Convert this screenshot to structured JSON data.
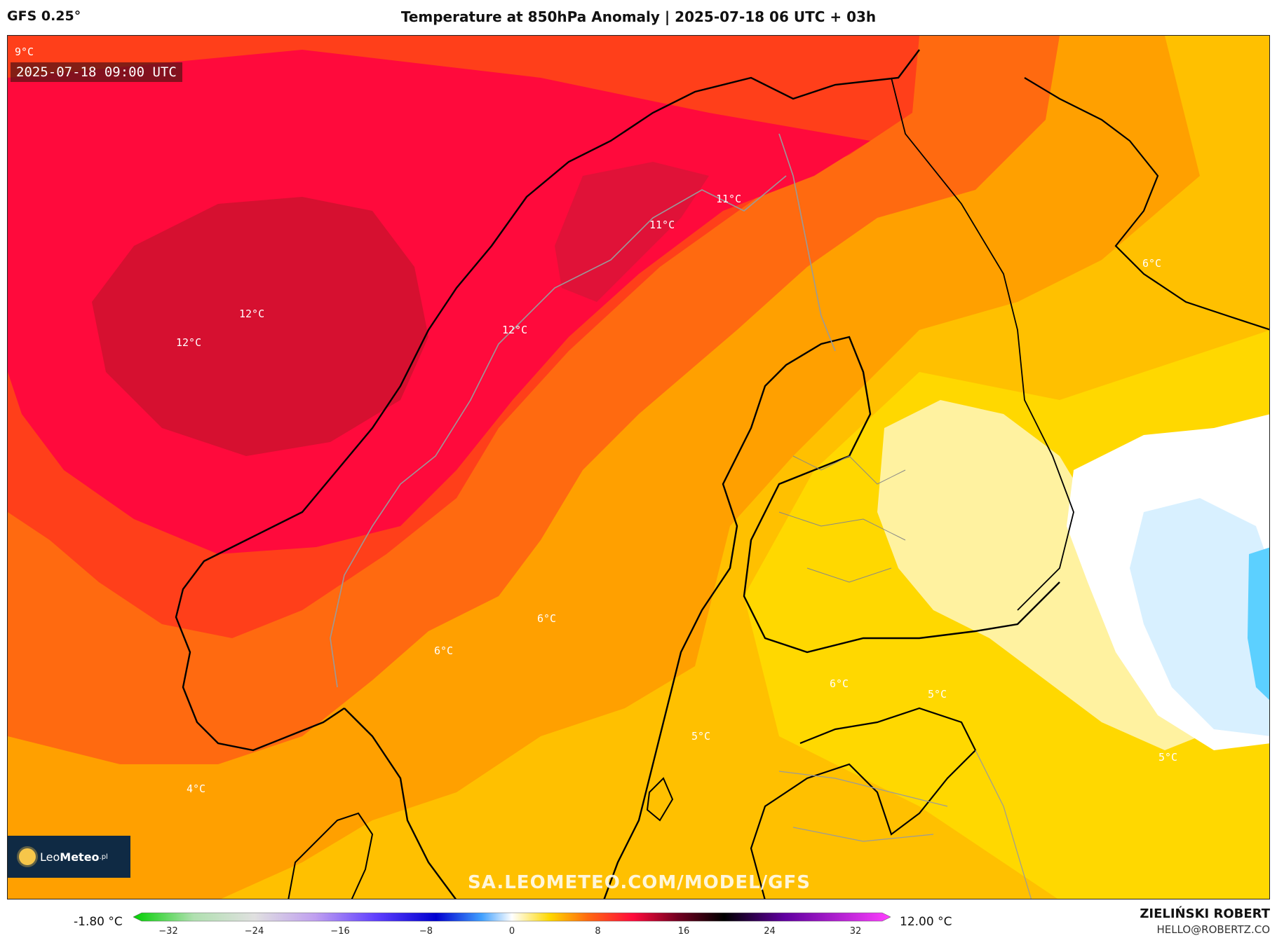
{
  "header": {
    "model": "GFS 0.25°",
    "title": "Temperature at 850hPa Anomaly | 2025-07-18 06 UTC + 03h"
  },
  "map": {
    "valid_time": "2025-07-18 09:00 UTC",
    "corner_label": "9°C",
    "watermark": "SA.LEOMETEO.COM/MODEL/GFS",
    "logo": {
      "part1": "Leo",
      "part2": "Meteo",
      "suffix": ".pl"
    },
    "labels": [
      "12°C",
      "12°C",
      "12°C",
      "11°C",
      "11°C",
      "6°C",
      "6°C",
      "6°C",
      "6°C",
      "5°C",
      "5°C",
      "5°C",
      "4°C"
    ],
    "colors": {
      "hot_core": "#d61030",
      "hot": "#ff0a3c",
      "warm_red": "#ff3f1a",
      "orange_red": "#ff6a10",
      "orange": "#ffa000",
      "amber": "#ffc000",
      "yellow": "#ffd800",
      "pale_yellow": "#fff2a0",
      "white": "#ffffff",
      "ice_blue": "#d8f0ff",
      "cyan": "#5cd0ff",
      "coastline": "#000000",
      "border": "#9a9a9a"
    }
  },
  "legend": {
    "min_text": "-1.80 °C",
    "max_text": "12.00 °C",
    "ticks": [
      "−32",
      "−24",
      "−16",
      "−8",
      "0",
      "8",
      "16",
      "24",
      "32"
    ]
  },
  "credits": {
    "author": "ZIELIŃSKI ROBERT",
    "email": "HELLO@ROBERTZ.CO"
  }
}
